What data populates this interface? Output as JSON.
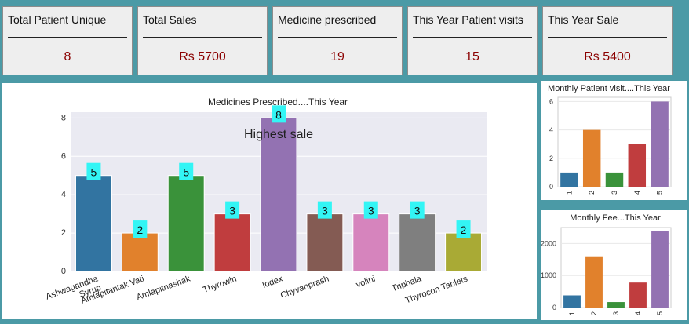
{
  "cards": [
    {
      "label": "Total Patient Unique",
      "value": "8"
    },
    {
      "label": "Total Sales",
      "value": "Rs 5700"
    },
    {
      "label": "Medicine prescribed",
      "value": "19"
    },
    {
      "label": "This Year Patient visits",
      "value": "15"
    },
    {
      "label": "This Year Sale",
      "value": "Rs 5400"
    }
  ],
  "colors": [
    "#3274a1",
    "#e1812c",
    "#3a923a",
    "#c03d3e",
    "#9372b2",
    "#845b53",
    "#d684bd",
    "#7f7f7f",
    "#a9aa35"
  ],
  "chart_data": [
    {
      "type": "bar",
      "title": "Medicines Prescribed....This Year",
      "annotation": "Highest sale",
      "categories": [
        "Ashwagandha Syrup",
        "Amlapitantak Vati",
        "Amlapitnashak",
        "Thyrowin",
        "Iodex",
        "Chyvanprash",
        "volini",
        "Triphala",
        "Thyrocon Tablets"
      ],
      "tick_labels": [
        [
          "Ashwagandha",
          "Syrup"
        ],
        [
          "Amlapitantak Vati"
        ],
        [
          "Amlapitnashak"
        ],
        [
          "Thyrowin"
        ],
        [
          "Iodex"
        ],
        [
          "Chyvanprash"
        ],
        [
          "volini"
        ],
        [
          "Triphala"
        ],
        [
          "Thyrocon Tablets"
        ]
      ],
      "values": [
        5,
        2,
        5,
        3,
        8,
        3,
        3,
        3,
        2
      ],
      "data_labels": true,
      "ylim": [
        0,
        8.3
      ],
      "yticks": [
        0,
        2,
        4,
        6,
        8
      ],
      "grid": true
    },
    {
      "type": "bar",
      "title": "Monthly Patient visit....This Year",
      "categories": [
        "1",
        "2",
        "3",
        "4",
        "5"
      ],
      "values": [
        1,
        4,
        1,
        3,
        6
      ],
      "ylim": [
        0,
        6.3
      ],
      "yticks": [
        0,
        2,
        4,
        6
      ],
      "grid": true
    },
    {
      "type": "bar",
      "title": "Monthly Fee...This Year",
      "categories": [
        "1",
        "2",
        "3",
        "4",
        "5"
      ],
      "values": [
        380,
        1600,
        170,
        780,
        2400
      ],
      "ylim": [
        0,
        2500
      ],
      "yticks": [
        0,
        1000,
        2000
      ],
      "grid": true
    }
  ]
}
